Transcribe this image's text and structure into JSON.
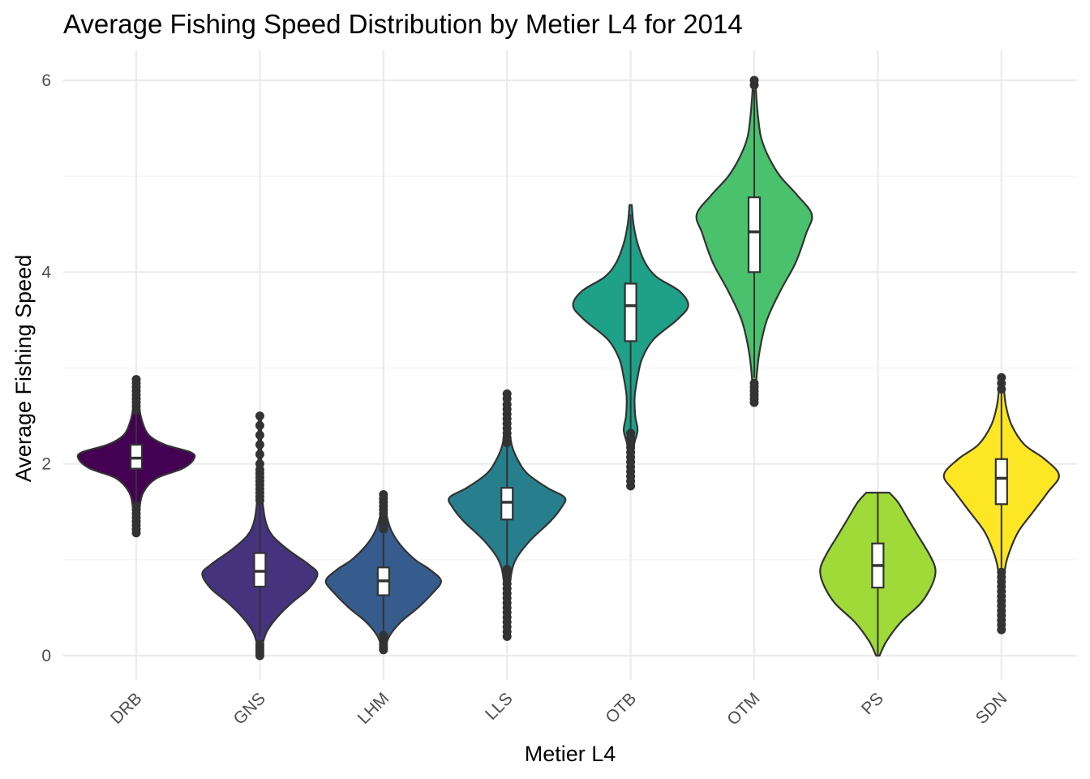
{
  "chart_data": {
    "type": "violin",
    "title": "Average Fishing Speed Distribution by Metier L4 for 2014",
    "xlabel": "Metier L4",
    "ylabel": "Average Fishing Speed",
    "ylim": [
      -0.25,
      6.3
    ],
    "yticks": [
      0,
      2,
      4,
      6
    ],
    "grid": true,
    "categories": [
      "DRB",
      "GNS",
      "LHM",
      "LLS",
      "OTB",
      "OTM",
      "PS",
      "SDN"
    ],
    "series": [
      {
        "category": "DRB",
        "color": "#440154",
        "min": 1.28,
        "max": 2.88,
        "whisker_low": 1.6,
        "whisker_high": 2.55,
        "q1": 1.95,
        "median": 2.06,
        "q3": 2.2,
        "density": [
          [
            1.28,
            0.02
          ],
          [
            1.5,
            0.05
          ],
          [
            1.7,
            0.12
          ],
          [
            1.85,
            0.35
          ],
          [
            1.95,
            0.8
          ],
          [
            2.05,
            1.0
          ],
          [
            2.12,
            0.95
          ],
          [
            2.2,
            0.5
          ],
          [
            2.3,
            0.22
          ],
          [
            2.45,
            0.1
          ],
          [
            2.6,
            0.05
          ],
          [
            2.75,
            0.03
          ],
          [
            2.88,
            0.02
          ]
        ],
        "outliers_low": [
          1.28,
          1.32,
          1.36,
          1.4,
          1.44,
          1.48,
          1.52,
          1.56
        ],
        "outliers_high": [
          2.56,
          2.6,
          2.64,
          2.68,
          2.72,
          2.76,
          2.8,
          2.84,
          2.88
        ]
      },
      {
        "category": "GNS",
        "color": "#46337e",
        "min": 0.0,
        "max": 2.5,
        "whisker_low": 0.2,
        "whisker_high": 1.6,
        "q1": 0.72,
        "median": 0.88,
        "q3": 1.07,
        "density": [
          [
            0.0,
            0.02
          ],
          [
            0.1,
            0.04
          ],
          [
            0.25,
            0.12
          ],
          [
            0.4,
            0.3
          ],
          [
            0.55,
            0.55
          ],
          [
            0.7,
            0.85
          ],
          [
            0.85,
            1.0
          ],
          [
            0.95,
            0.85
          ],
          [
            1.1,
            0.5
          ],
          [
            1.25,
            0.22
          ],
          [
            1.4,
            0.1
          ],
          [
            1.6,
            0.05
          ],
          [
            1.8,
            0.03
          ],
          [
            2.5,
            0.02
          ]
        ],
        "outliers_low": [
          0.0,
          0.03,
          0.06,
          0.09,
          0.12
        ],
        "outliers_high": [
          1.62,
          1.66,
          1.7,
          1.74,
          1.78,
          1.82,
          1.86,
          1.9,
          1.94,
          2.0,
          2.1,
          2.2,
          2.3,
          2.4,
          2.5
        ]
      },
      {
        "category": "LHM",
        "color": "#365c8d",
        "min": 0.06,
        "max": 1.68,
        "whisker_low": 0.25,
        "whisker_high": 1.3,
        "q1": 0.63,
        "median": 0.78,
        "q3": 0.92,
        "density": [
          [
            0.06,
            0.02
          ],
          [
            0.2,
            0.1
          ],
          [
            0.35,
            0.3
          ],
          [
            0.5,
            0.6
          ],
          [
            0.65,
            0.85
          ],
          [
            0.78,
            1.0
          ],
          [
            0.9,
            0.8
          ],
          [
            1.0,
            0.55
          ],
          [
            1.15,
            0.3
          ],
          [
            1.3,
            0.14
          ],
          [
            1.45,
            0.06
          ],
          [
            1.6,
            0.03
          ],
          [
            1.68,
            0.02
          ]
        ],
        "outliers_low": [
          0.06,
          0.09,
          0.12,
          0.15,
          0.18,
          0.21
        ],
        "outliers_high": [
          1.32,
          1.36,
          1.4,
          1.44,
          1.48,
          1.52,
          1.56,
          1.6,
          1.64,
          1.68
        ]
      },
      {
        "category": "LLS",
        "color": "#277f8e",
        "min": 0.2,
        "max": 2.73,
        "whisker_low": 0.93,
        "whisker_high": 2.2,
        "q1": 1.42,
        "median": 1.6,
        "q3": 1.75,
        "density": [
          [
            0.2,
            0.02
          ],
          [
            0.5,
            0.03
          ],
          [
            0.8,
            0.06
          ],
          [
            1.0,
            0.15
          ],
          [
            1.2,
            0.4
          ],
          [
            1.4,
            0.75
          ],
          [
            1.55,
            0.95
          ],
          [
            1.65,
            1.0
          ],
          [
            1.75,
            0.7
          ],
          [
            1.9,
            0.35
          ],
          [
            2.05,
            0.18
          ],
          [
            2.2,
            0.08
          ],
          [
            2.4,
            0.04
          ],
          [
            2.73,
            0.02
          ]
        ],
        "outliers_low": [
          0.2,
          0.25,
          0.3,
          0.35,
          0.4,
          0.45,
          0.5,
          0.55,
          0.6,
          0.65,
          0.7,
          0.75,
          0.8,
          0.85,
          0.9
        ],
        "outliers_high": [
          2.22,
          2.27,
          2.32,
          2.37,
          2.42,
          2.47,
          2.52,
          2.57,
          2.62,
          2.68,
          2.73
        ]
      },
      {
        "category": "OTB",
        "color": "#1fa187",
        "min": 1.77,
        "max": 4.7,
        "whisker_low": 2.35,
        "whisker_high": 4.6,
        "q1": 3.28,
        "median": 3.65,
        "q3": 3.88,
        "density": [
          [
            1.77,
            0.02
          ],
          [
            2.0,
            0.04
          ],
          [
            2.2,
            0.06
          ],
          [
            2.35,
            0.12
          ],
          [
            2.5,
            0.08
          ],
          [
            2.7,
            0.07
          ],
          [
            2.9,
            0.12
          ],
          [
            3.1,
            0.2
          ],
          [
            3.3,
            0.4
          ],
          [
            3.5,
            0.8
          ],
          [
            3.65,
            1.0
          ],
          [
            3.8,
            0.85
          ],
          [
            3.95,
            0.45
          ],
          [
            4.1,
            0.25
          ],
          [
            4.3,
            0.12
          ],
          [
            4.5,
            0.05
          ],
          [
            4.7,
            0.02
          ]
        ],
        "outliers_low": [
          1.77,
          1.82,
          1.87,
          1.92,
          1.97,
          2.02,
          2.07,
          2.12,
          2.17,
          2.22,
          2.27,
          2.32
        ],
        "outliers_high": []
      },
      {
        "category": "OTM",
        "color": "#4ac16d",
        "min": 2.62,
        "max": 6.0,
        "whisker_low": 2.9,
        "whisker_high": 5.9,
        "q1": 4.0,
        "median": 4.42,
        "q3": 4.78,
        "density": [
          [
            2.62,
            0.02
          ],
          [
            2.9,
            0.04
          ],
          [
            3.2,
            0.1
          ],
          [
            3.5,
            0.22
          ],
          [
            3.8,
            0.45
          ],
          [
            4.1,
            0.72
          ],
          [
            4.4,
            0.9
          ],
          [
            4.6,
            1.0
          ],
          [
            4.8,
            0.75
          ],
          [
            5.0,
            0.45
          ],
          [
            5.2,
            0.25
          ],
          [
            5.4,
            0.12
          ],
          [
            5.6,
            0.07
          ],
          [
            5.8,
            0.04
          ],
          [
            6.0,
            0.02
          ]
        ],
        "outliers_low": [
          2.64,
          2.68,
          2.72,
          2.76,
          2.8,
          2.84
        ],
        "outliers_high": [
          5.95,
          6.0
        ]
      },
      {
        "category": "PS",
        "color": "#a0da39",
        "min": 0.0,
        "max": 1.7,
        "whisker_low": 0.0,
        "whisker_high": 1.7,
        "q1": 0.71,
        "median": 0.94,
        "q3": 1.17,
        "density": [
          [
            0.0,
            0.03
          ],
          [
            0.15,
            0.15
          ],
          [
            0.35,
            0.4
          ],
          [
            0.55,
            0.75
          ],
          [
            0.75,
            0.95
          ],
          [
            0.9,
            1.0
          ],
          [
            1.05,
            0.9
          ],
          [
            1.25,
            0.7
          ],
          [
            1.45,
            0.5
          ],
          [
            1.6,
            0.35
          ],
          [
            1.7,
            0.2
          ]
        ],
        "outliers_low": [],
        "outliers_high": []
      },
      {
        "category": "SDN",
        "color": "#fde725",
        "min": 0.27,
        "max": 2.9,
        "whisker_low": 0.9,
        "whisker_high": 2.75,
        "q1": 1.58,
        "median": 1.85,
        "q3": 2.05,
        "density": [
          [
            0.27,
            0.02
          ],
          [
            0.6,
            0.03
          ],
          [
            0.9,
            0.06
          ],
          [
            1.1,
            0.15
          ],
          [
            1.3,
            0.3
          ],
          [
            1.5,
            0.55
          ],
          [
            1.7,
            0.8
          ],
          [
            1.88,
            1.0
          ],
          [
            2.05,
            0.75
          ],
          [
            2.2,
            0.4
          ],
          [
            2.4,
            0.18
          ],
          [
            2.6,
            0.08
          ],
          [
            2.8,
            0.04
          ],
          [
            2.9,
            0.02
          ]
        ],
        "outliers_low": [
          0.27,
          0.32,
          0.37,
          0.42,
          0.47,
          0.52,
          0.57,
          0.62,
          0.67,
          0.72,
          0.77,
          0.82,
          0.87
        ],
        "outliers_high": [
          2.78,
          2.84,
          2.9
        ]
      }
    ]
  }
}
